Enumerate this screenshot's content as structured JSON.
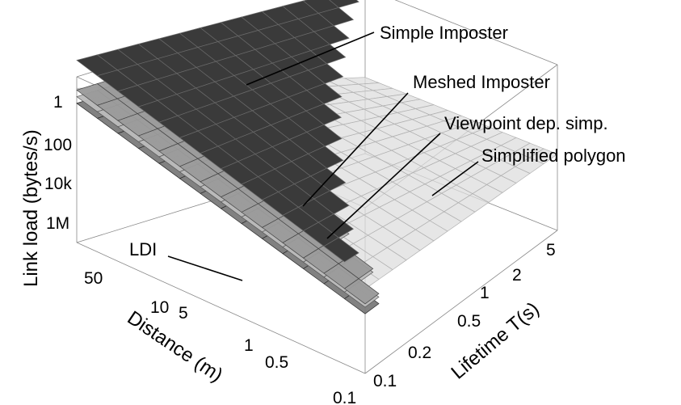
{
  "chart_data": {
    "type": "surface",
    "zlabel": "Link load (bytes/s)",
    "xlabel": "Distance (m)",
    "ylabel": "Lifetime T(s)",
    "z_ticks": [
      "1",
      "100",
      "10k",
      "1M"
    ],
    "x_ticks": [
      "50",
      "10",
      "5",
      "1",
      "0.5",
      "0.1"
    ],
    "y_ticks": [
      "0.1",
      "0.2",
      "0.5",
      "1",
      "2",
      "5"
    ],
    "series": [
      {
        "name": "Simple Imposter",
        "color": "#3a3a3a"
      },
      {
        "name": "Meshed Imposter",
        "color": "#9a9a9a"
      },
      {
        "name": "Viewpoint dep. simp.",
        "color": "#bcbcbc"
      },
      {
        "name": "Simplified polygon",
        "color": "#dedede"
      },
      {
        "name": "LDI",
        "color": "#7a7a7a"
      }
    ]
  }
}
